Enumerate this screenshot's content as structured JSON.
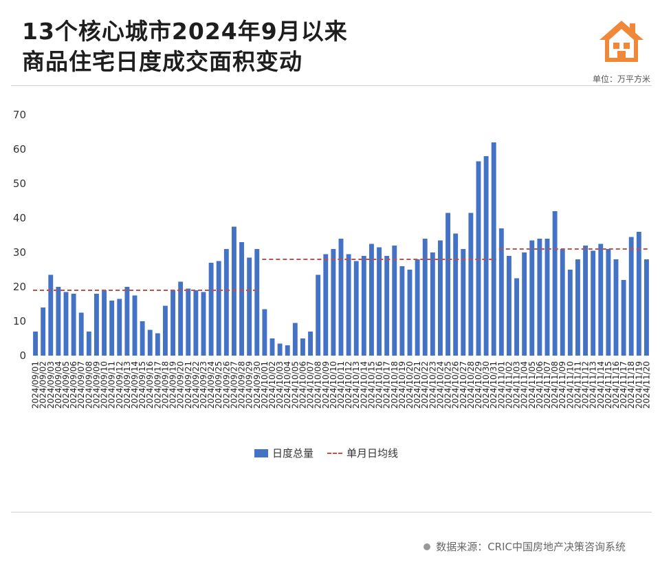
{
  "header": {
    "title_line1": "13个核心城市2024年9月以来",
    "title_line2": "商品住宅日度成交面积变动",
    "unit": "单位：万平方米"
  },
  "legend": {
    "bar_label": "日度总量",
    "line_label": "单月日均线"
  },
  "footer": {
    "source": "数据来源：CRIC中国房地产决策咨询系统"
  },
  "colors": {
    "bar": "#4472c4",
    "avg_line": "#c0504d",
    "logo": "#f0883a"
  },
  "icons": {
    "logo": "house-icon"
  },
  "chart_data": {
    "type": "bar",
    "ylim": [
      0,
      70
    ],
    "yticks": [
      0,
      10,
      20,
      30,
      40,
      50,
      60,
      70
    ],
    "grid": false,
    "legend_position": "bottom",
    "categories": [
      "2024/09/01",
      "2024/09/02",
      "2024/09/03",
      "2024/09/04",
      "2024/09/05",
      "2024/09/06",
      "2024/09/07",
      "2024/09/08",
      "2024/09/09",
      "2024/09/10",
      "2024/09/11",
      "2024/09/12",
      "2024/09/13",
      "2024/09/14",
      "2024/09/15",
      "2024/09/16",
      "2024/09/17",
      "2024/09/18",
      "2024/09/19",
      "2024/09/20",
      "2024/09/21",
      "2024/09/22",
      "2024/09/23",
      "2024/09/24",
      "2024/09/25",
      "2024/09/26",
      "2024/09/27",
      "2024/09/28",
      "2024/09/29",
      "2024/09/30",
      "2024/10/01",
      "2024/10/02",
      "2024/10/03",
      "2024/10/04",
      "2024/10/05",
      "2024/10/06",
      "2024/10/07",
      "2024/10/08",
      "2024/10/09",
      "2024/10/10",
      "2024/10/11",
      "2024/10/12",
      "2024/10/13",
      "2024/10/14",
      "2024/10/15",
      "2024/10/16",
      "2024/10/17",
      "2024/10/18",
      "2024/10/19",
      "2024/10/20",
      "2024/10/21",
      "2024/10/22",
      "2024/10/23",
      "2024/10/24",
      "2024/10/25",
      "2024/10/26",
      "2024/10/27",
      "2024/10/28",
      "2024/10/29",
      "2024/10/30",
      "2024/10/31",
      "2024/11/01",
      "2024/11/02",
      "2024/11/03",
      "2024/11/04",
      "2024/11/05",
      "2024/11/06",
      "2024/11/07",
      "2024/11/08",
      "2024/11/09",
      "2024/11/10",
      "2024/11/11",
      "2024/11/12",
      "2024/11/13",
      "2024/11/14",
      "2024/11/15",
      "2024/11/16",
      "2024/11/17",
      "2024/11/18",
      "2024/11/19",
      "2024/11/20"
    ],
    "series": [
      {
        "name": "日度总量",
        "values": [
          7,
          14,
          23.5,
          20,
          18.5,
          18,
          12.5,
          7,
          18,
          19,
          16,
          16.5,
          20,
          17.5,
          10,
          7.5,
          6.5,
          14.5,
          19,
          21.5,
          19.5,
          19,
          18.5,
          27,
          27.5,
          31,
          37.5,
          33,
          28.5,
          31,
          13.5,
          5,
          3.5,
          3,
          9.5,
          5,
          7,
          23.5,
          29.5,
          31,
          34,
          29.5,
          27.5,
          29,
          32.5,
          31.5,
          29,
          32,
          26,
          25,
          28,
          34,
          30,
          33.5,
          41.5,
          35.5,
          31,
          41.5,
          56.5,
          58,
          62,
          37,
          29,
          22.5,
          30,
          33.5,
          34,
          34,
          42,
          31,
          25,
          28,
          32,
          30.5,
          32.5,
          31,
          28,
          22,
          34.5,
          36,
          28
        ]
      },
      {
        "name": "单月日均线",
        "type": "line",
        "segments": [
          {
            "from": "2024/09/01",
            "to": "2024/09/30",
            "value": 19
          },
          {
            "from": "2024/10/01",
            "to": "2024/10/31",
            "value": 28
          },
          {
            "from": "2024/11/01",
            "to": "2024/11/20",
            "value": 31
          }
        ]
      }
    ]
  }
}
